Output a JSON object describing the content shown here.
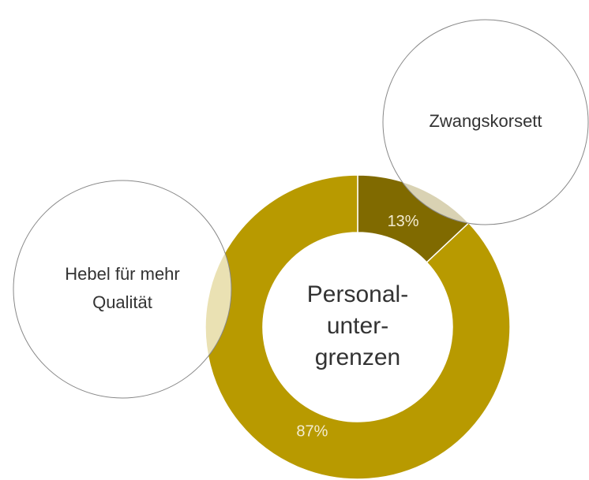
{
  "chart_data": {
    "type": "pie",
    "values": [
      13,
      87
    ],
    "value_labels": [
      "13%",
      "87%"
    ],
    "colors": [
      "#806a00",
      "#b89a00"
    ],
    "center_label": [
      "Personal-",
      "unter-",
      "grenzen"
    ],
    "annotations": [
      {
        "text": [
          "Zwangskorsett"
        ]
      },
      {
        "text": [
          "Hebel für mehr",
          "Qualität"
        ]
      }
    ]
  }
}
